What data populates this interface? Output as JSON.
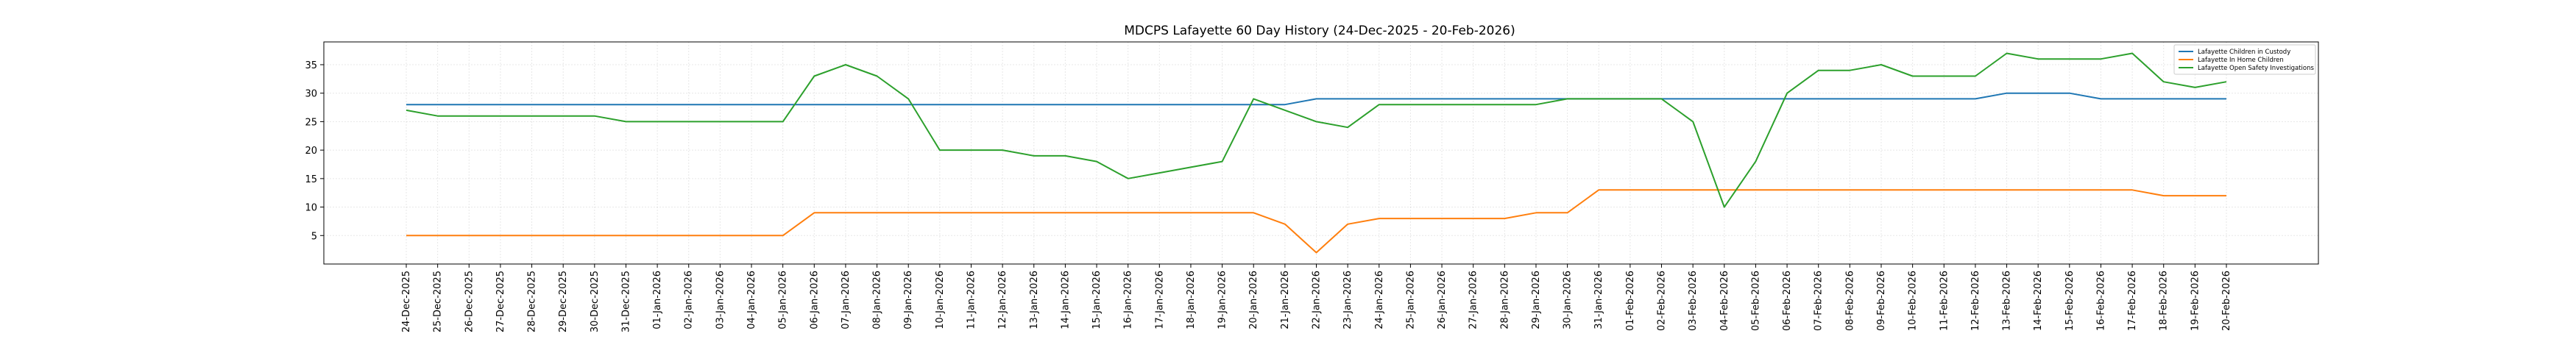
{
  "chart_data": {
    "type": "line",
    "title": "MDCPS Lafayette 60 Day History (24-Dec-2025 - 20-Feb-2026)",
    "xlabel": "",
    "ylabel": "",
    "ylim": [
      0,
      39
    ],
    "yticks": [
      5,
      10,
      15,
      20,
      25,
      30,
      35
    ],
    "grid": true,
    "legend_position": "top-right",
    "x": [
      "24-Dec-2025",
      "25-Dec-2025",
      "26-Dec-2025",
      "27-Dec-2025",
      "28-Dec-2025",
      "29-Dec-2025",
      "30-Dec-2025",
      "31-Dec-2025",
      "01-Jan-2026",
      "02-Jan-2026",
      "03-Jan-2026",
      "04-Jan-2026",
      "05-Jan-2026",
      "06-Jan-2026",
      "07-Jan-2026",
      "08-Jan-2026",
      "09-Jan-2026",
      "10-Jan-2026",
      "11-Jan-2026",
      "12-Jan-2026",
      "13-Jan-2026",
      "14-Jan-2026",
      "15-Jan-2026",
      "16-Jan-2026",
      "17-Jan-2026",
      "18-Jan-2026",
      "19-Jan-2026",
      "20-Jan-2026",
      "21-Jan-2026",
      "22-Jan-2026",
      "23-Jan-2026",
      "24-Jan-2026",
      "25-Jan-2026",
      "26-Jan-2026",
      "27-Jan-2026",
      "28-Jan-2026",
      "29-Jan-2026",
      "30-Jan-2026",
      "31-Jan-2026",
      "01-Feb-2026",
      "02-Feb-2026",
      "03-Feb-2026",
      "04-Feb-2026",
      "05-Feb-2026",
      "06-Feb-2026",
      "07-Feb-2026",
      "08-Feb-2026",
      "09-Feb-2026",
      "10-Feb-2026",
      "11-Feb-2026",
      "12-Feb-2026",
      "13-Feb-2026",
      "14-Feb-2026",
      "15-Feb-2026",
      "16-Feb-2026",
      "17-Feb-2026",
      "18-Feb-2026",
      "19-Feb-2026",
      "20-Feb-2026"
    ],
    "series": [
      {
        "name": "Lafayette Children in Custody",
        "color": "#1f77b4",
        "values": [
          28,
          28,
          28,
          28,
          28,
          28,
          28,
          28,
          28,
          28,
          28,
          28,
          28,
          28,
          28,
          28,
          28,
          28,
          28,
          28,
          28,
          28,
          28,
          28,
          28,
          28,
          28,
          28,
          28,
          29,
          29,
          29,
          29,
          29,
          29,
          29,
          29,
          29,
          29,
          29,
          29,
          29,
          29,
          29,
          29,
          29,
          29,
          29,
          29,
          29,
          29,
          30,
          30,
          30,
          29,
          29,
          29,
          29,
          29
        ]
      },
      {
        "name": "Lafayette In Home Children",
        "color": "#ff7f0e",
        "values": [
          5,
          5,
          5,
          5,
          5,
          5,
          5,
          5,
          5,
          5,
          5,
          5,
          5,
          9,
          9,
          9,
          9,
          9,
          9,
          9,
          9,
          9,
          9,
          9,
          9,
          9,
          9,
          9,
          7,
          2,
          7,
          8,
          8,
          8,
          8,
          8,
          9,
          9,
          13,
          13,
          13,
          13,
          13,
          13,
          13,
          13,
          13,
          13,
          13,
          13,
          13,
          13,
          13,
          13,
          13,
          13,
          12,
          12,
          12
        ]
      },
      {
        "name": "Lafayette Open Safety Investigations",
        "color": "#2ca02c",
        "values": [
          27,
          26,
          26,
          26,
          26,
          26,
          26,
          25,
          25,
          25,
          25,
          25,
          25,
          33,
          35,
          33,
          29,
          20,
          20,
          20,
          19,
          19,
          18,
          15,
          16,
          17,
          18,
          29,
          27,
          25,
          24,
          28,
          28,
          28,
          28,
          28,
          28,
          29,
          29,
          29,
          29,
          25,
          10,
          18,
          30,
          34,
          34,
          35,
          33,
          33,
          33,
          37,
          36,
          36,
          36,
          37,
          32,
          31,
          32
        ]
      }
    ]
  }
}
